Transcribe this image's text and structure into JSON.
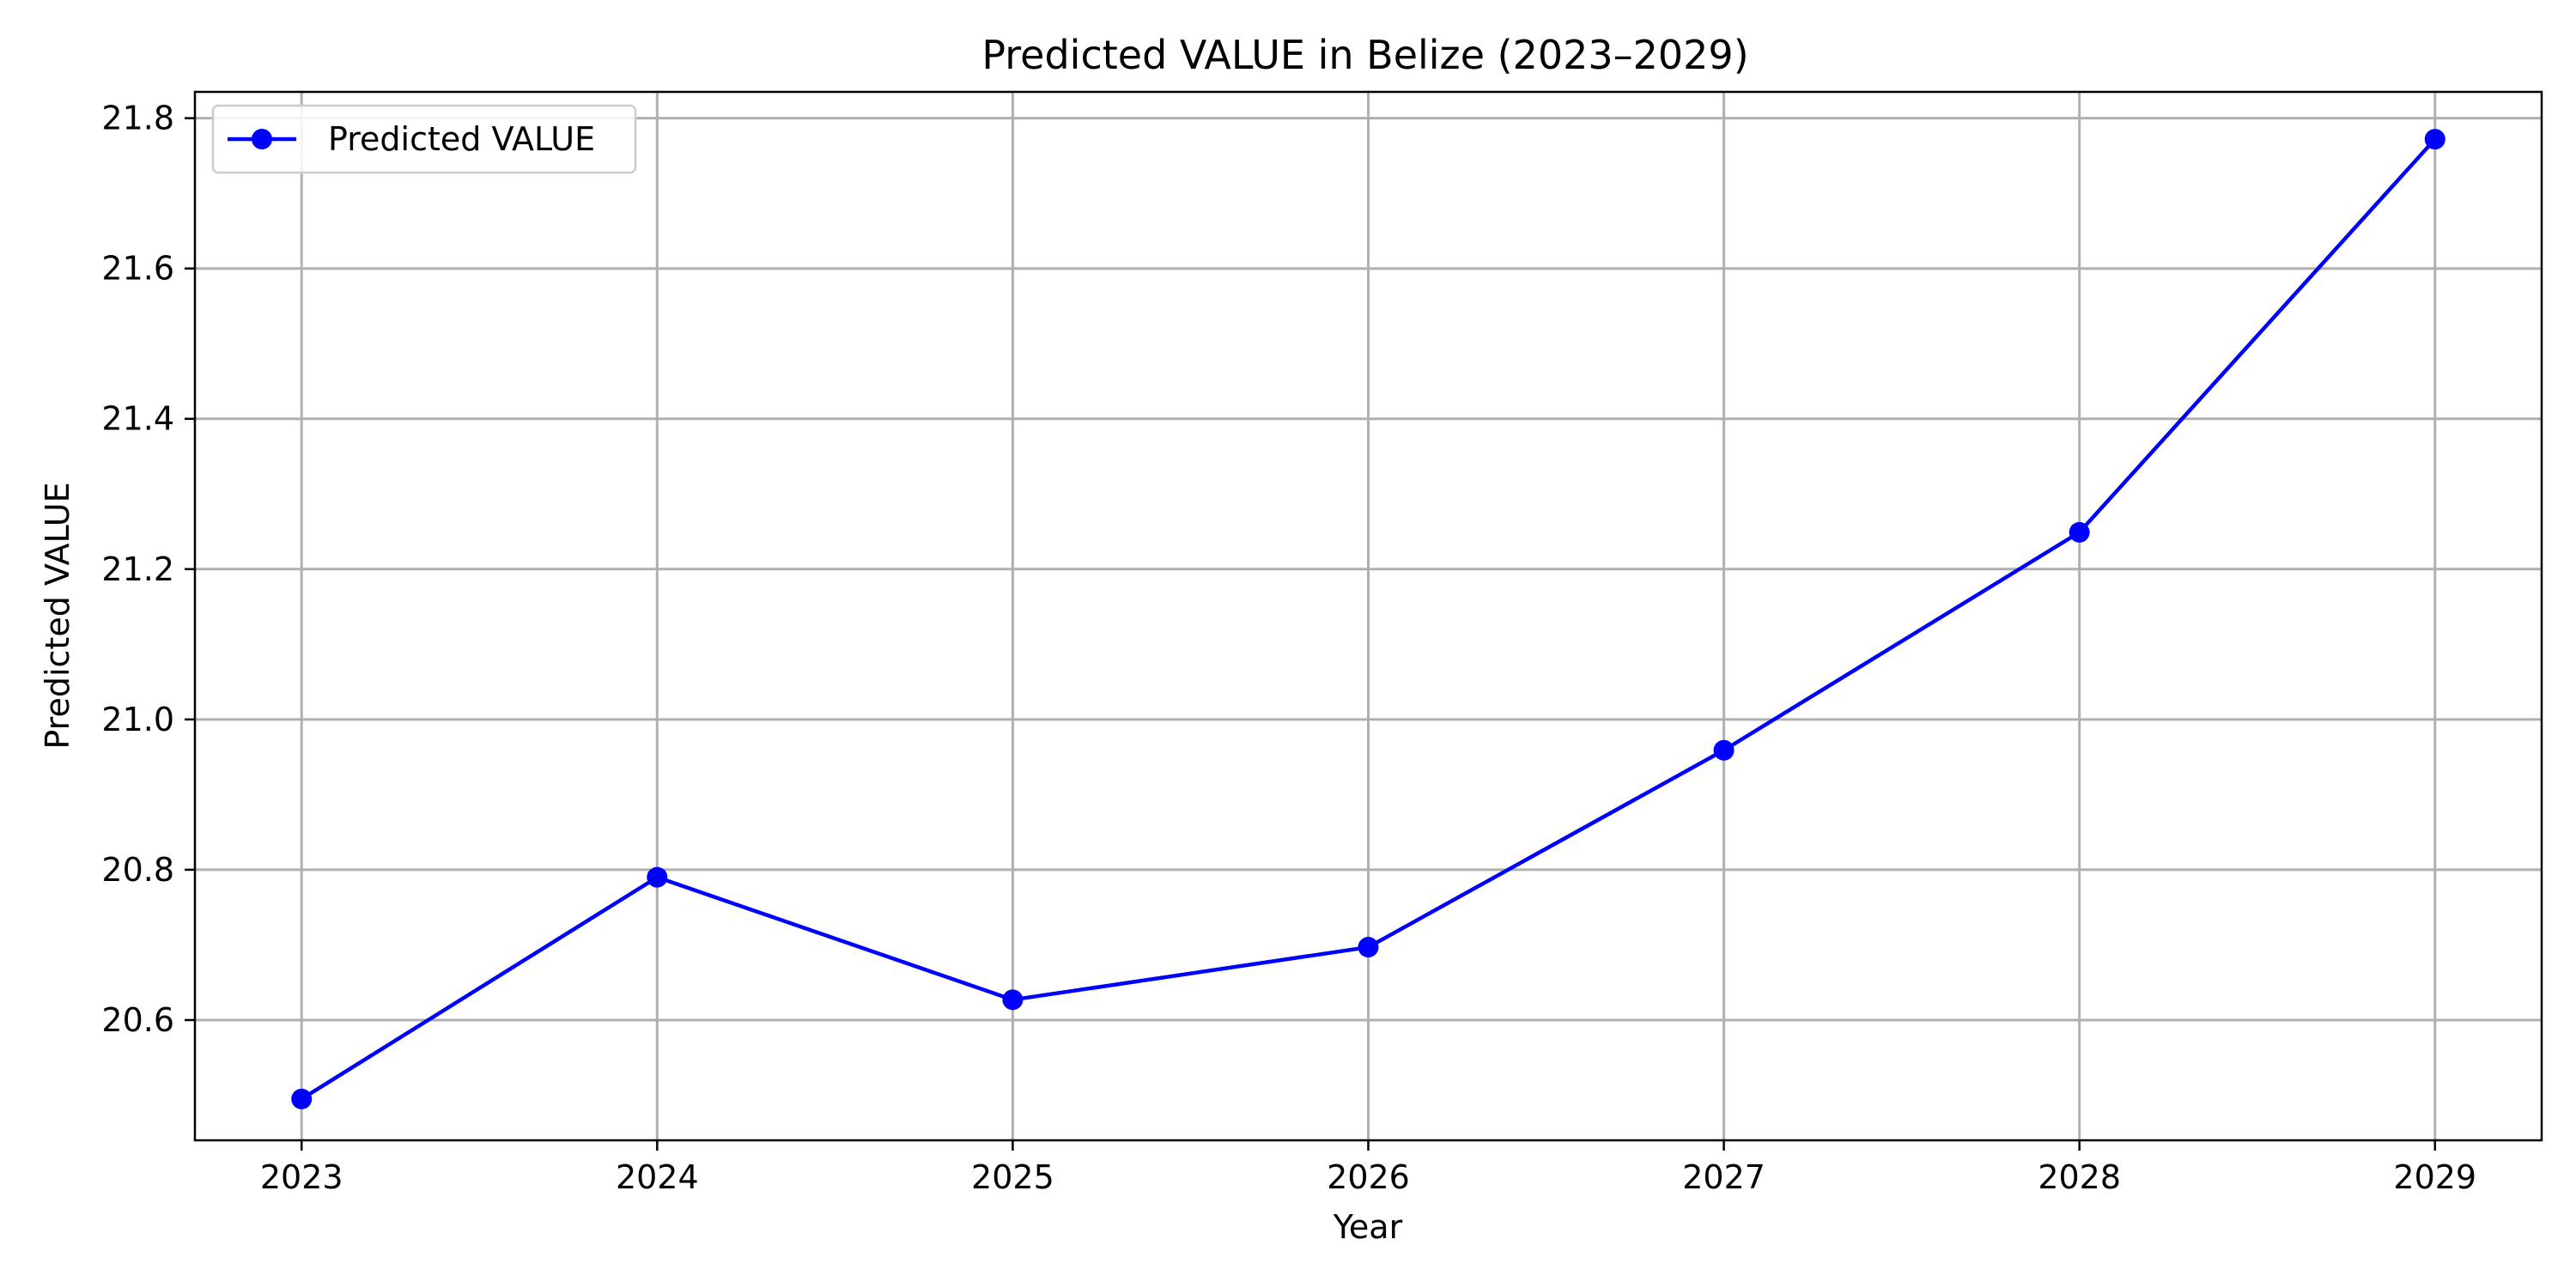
{
  "chart_data": {
    "type": "line",
    "title": "Predicted VALUE in Belize (2023–2029)",
    "xlabel": "Year",
    "ylabel": "Predicted VALUE",
    "x": [
      "2023",
      "2024",
      "2025",
      "2026",
      "2027",
      "2028",
      "2029"
    ],
    "y_ticks": [
      "20.6",
      "20.8",
      "21.0",
      "21.2",
      "21.4",
      "21.6",
      "21.8"
    ],
    "xlim": [
      2022.7,
      2029.3
    ],
    "ylim": [
      20.44,
      21.835
    ],
    "grid": true,
    "legend_position": "top-left",
    "series": [
      {
        "name": "Predicted VALUE",
        "color": "#0000ff",
        "marker": "circle",
        "values": [
          20.495,
          20.79,
          20.627,
          20.697,
          20.959,
          21.249,
          21.772
        ]
      }
    ]
  }
}
